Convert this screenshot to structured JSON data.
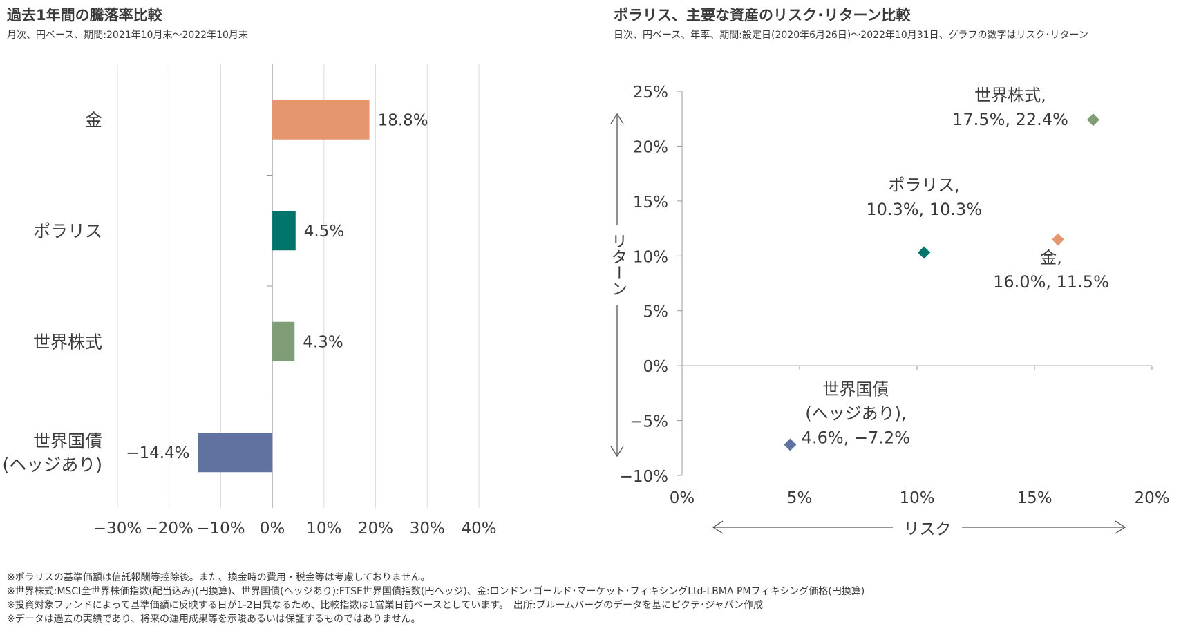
{
  "left": {
    "title": "過去1年間の騰落率比較",
    "subtitle": "月次、円ベース、期間:2021年10月末～2022年10月末"
  },
  "right": {
    "title": "ポラリス、主要な資産のリスク･リターン比較",
    "subtitle": "日次、円ベース、年率、期間:設定日(2020年6月26日)～2022年10月31日、グラフの数字はリスク･リターン"
  },
  "chart_data": [
    {
      "type": "bar",
      "orientation": "horizontal",
      "categories": [
        [
          "金"
        ],
        [
          "ポラリス"
        ],
        [
          "世界株式"
        ],
        [
          "世界国債",
          "(ヘッジあり)"
        ]
      ],
      "values": [
        18.8,
        4.5,
        4.3,
        -14.4
      ],
      "value_labels": [
        "18.8%",
        "4.5%",
        "4.3%",
        "−14.4%"
      ],
      "colors": [
        "#e5966e",
        "#00736b",
        "#7f9d77",
        "#60729f"
      ],
      "xlim": [
        -30,
        40
      ],
      "xticks": [
        -30,
        -20,
        -10,
        0,
        10,
        20,
        30,
        40
      ],
      "xtick_labels": [
        "−30%",
        "−20%",
        "−10%",
        "0%",
        "10%",
        "20%",
        "30%",
        "40%"
      ],
      "grid": "vertical"
    },
    {
      "type": "scatter",
      "xlabel": "リスク",
      "ylabel": "リターン",
      "xlim": [
        0,
        20
      ],
      "ylim": [
        -10,
        25
      ],
      "xticks": [
        0,
        5,
        10,
        15,
        20
      ],
      "xtick_labels": [
        "0%",
        "5%",
        "10%",
        "15%",
        "20%"
      ],
      "yticks": [
        -10,
        -5,
        0,
        5,
        10,
        15,
        20,
        25
      ],
      "ytick_labels": [
        "−10%",
        "−5%",
        "0%",
        "5%",
        "10%",
        "15%",
        "20%",
        "25%"
      ],
      "points": [
        {
          "label": [
            "世界株式,",
            "17.5%, 22.4%"
          ],
          "x": 17.5,
          "y": 22.4,
          "color": "#7f9d77"
        },
        {
          "label": [
            "ポラリス,",
            "10.3%, 10.3%"
          ],
          "x": 10.3,
          "y": 10.3,
          "color": "#00736b"
        },
        {
          "label": [
            "金,",
            "16.0%, 11.5%"
          ],
          "x": 16.0,
          "y": 11.5,
          "color": "#e5966e"
        },
        {
          "label": [
            "世界国債",
            "(ヘッジあり),",
            "4.6%, −7.2%"
          ],
          "x": 4.6,
          "y": -7.2,
          "color": "#60729f"
        }
      ]
    }
  ],
  "notes": [
    "※ポラリスの基準価額は信託報酬等控除後。また、換金時の費用・税金等は考慮しておりません。",
    "※世界株式:MSCI全世界株価指数(配当込み)(円換算)、世界国債(ヘッジあり):FTSE世界国債指数(円ヘッジ)、金:ロンドン･ゴールド･マーケット･フィキシングLtd-LBMA PMフィキシング価格(円換算)",
    "※投資対象ファンドによって基準価額に反映する日が1-2日異なるため、比較指数は1営業日前ベースとしています。　出所:ブルームバーグのデータを基にピクテ･ジャパン作成",
    "※データは過去の実績であり、将来の運用成果等を示唆あるいは保証するものではありません。"
  ]
}
